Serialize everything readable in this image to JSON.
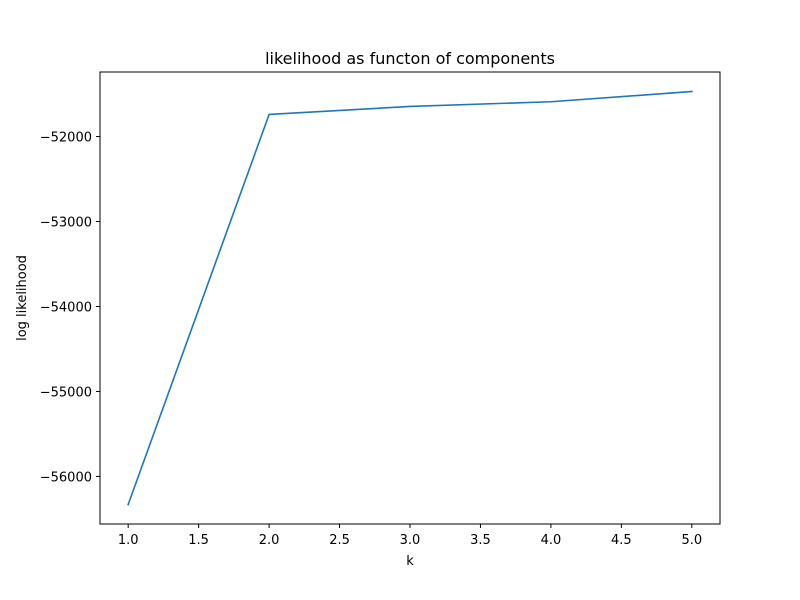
{
  "chart_data": {
    "type": "line",
    "title": "likelihood as functon of components",
    "xlabel": "k",
    "ylabel": "log likelihood",
    "x": [
      1.0,
      2.0,
      3.0,
      4.0,
      5.0
    ],
    "series": [
      {
        "values": [
          -56330,
          -51740,
          -51645,
          -51590,
          -51470
        ],
        "color": "#1f77b4"
      }
    ],
    "xlim": [
      0.8,
      5.2
    ],
    "ylim": [
      -56560,
      -51240
    ],
    "xticks": [
      1.0,
      1.5,
      2.0,
      2.5,
      3.0,
      3.5,
      4.0,
      4.5,
      5.0
    ],
    "xtick_labels": [
      "1.0",
      "1.5",
      "2.0",
      "2.5",
      "3.0",
      "3.5",
      "4.0",
      "4.5",
      "5.0"
    ],
    "yticks": [
      -56000,
      -55000,
      -54000,
      -53000,
      -52000
    ],
    "ytick_labels": [
      "−56000",
      "−55000",
      "−54000",
      "−53000",
      "−52000"
    ],
    "grid": false,
    "legend": "none"
  }
}
